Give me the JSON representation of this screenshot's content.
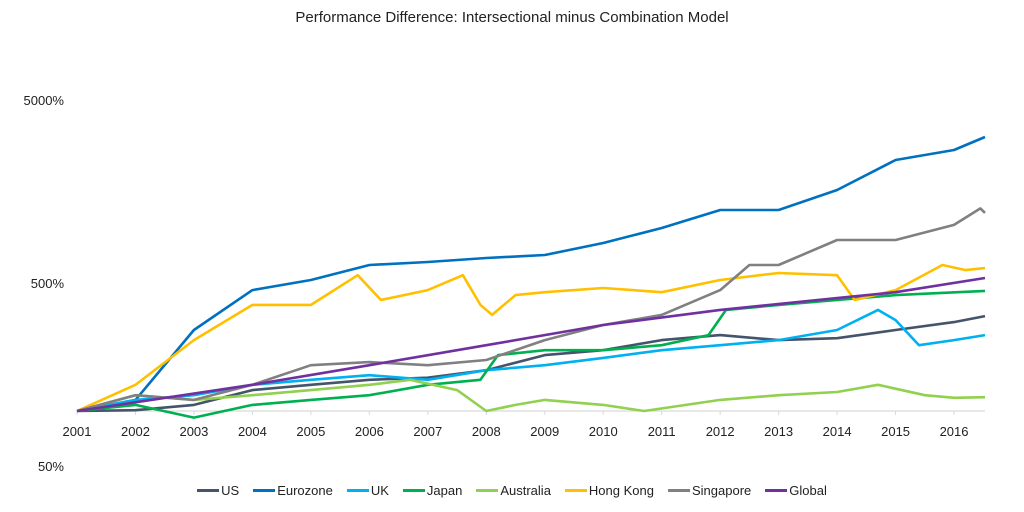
{
  "chart_data": {
    "type": "line",
    "title": "Performance Difference: Intersectional minus Combination Model",
    "xlabel": "",
    "ylabel": "",
    "y_scale": "log",
    "ylim": [
      50,
      5000
    ],
    "y_ticks": [
      50,
      500,
      5000
    ],
    "y_tick_labels": [
      "50%",
      "500%",
      "5000%"
    ],
    "x_ticks": [
      2001,
      2002,
      2003,
      2004,
      2005,
      2006,
      2007,
      2008,
      2009,
      2010,
      2011,
      2012,
      2013,
      2014,
      2015,
      2016
    ],
    "x_tick_labels": [
      "2001",
      "2002",
      "2003",
      "2004",
      "2005",
      "2006",
      "2007",
      "2008",
      "2009",
      "2010",
      "2011",
      "2012",
      "2013",
      "2014",
      "2015",
      "2016"
    ],
    "x_axis_crosses_at": 100,
    "grid": false,
    "legend": "bottom",
    "series": [
      {
        "name": "US",
        "color": "#44546A",
        "points": [
          [
            2001,
            100
          ],
          [
            2002,
            101
          ],
          [
            2003,
            108
          ],
          [
            2004,
            130
          ],
          [
            2005,
            139
          ],
          [
            2006,
            148
          ],
          [
            2007,
            152
          ],
          [
            2008,
            167
          ],
          [
            2009,
            202
          ],
          [
            2010,
            215
          ],
          [
            2011,
            244
          ],
          [
            2012,
            260
          ],
          [
            2013,
            244
          ],
          [
            2014,
            250
          ],
          [
            2015,
            277
          ],
          [
            2016,
            306
          ],
          [
            2016.53,
            330
          ]
        ]
      },
      {
        "name": "Eurozone",
        "color": "#0070C0",
        "points": [
          [
            2001,
            100
          ],
          [
            2002,
            115
          ],
          [
            2003,
            277
          ],
          [
            2004,
            458
          ],
          [
            2005,
            520
          ],
          [
            2006,
            628
          ],
          [
            2007,
            652
          ],
          [
            2008,
            686
          ],
          [
            2009,
            712
          ],
          [
            2010,
            828
          ],
          [
            2011,
            1000
          ],
          [
            2012,
            1254
          ],
          [
            2013,
            1254
          ],
          [
            2014,
            1613
          ],
          [
            2015,
            2353
          ],
          [
            2016,
            2668
          ],
          [
            2016.53,
            3142
          ]
        ]
      },
      {
        "name": "UK",
        "color": "#00B0F0",
        "points": [
          [
            2001,
            100
          ],
          [
            2002,
            115
          ],
          [
            2003,
            122
          ],
          [
            2004,
            139
          ],
          [
            2005,
            148
          ],
          [
            2006,
            157
          ],
          [
            2007,
            148
          ],
          [
            2008,
            167
          ],
          [
            2009,
            178
          ],
          [
            2010,
            195
          ],
          [
            2011,
            215
          ],
          [
            2012,
            229
          ],
          [
            2013,
            244
          ],
          [
            2014,
            277
          ],
          [
            2014.7,
            357
          ],
          [
            2015,
            314
          ],
          [
            2015.4,
            229
          ],
          [
            2016,
            244
          ],
          [
            2016.53,
            260
          ]
        ]
      },
      {
        "name": "Japan",
        "color": "#00B050",
        "points": [
          [
            2001,
            100
          ],
          [
            2002,
            108
          ],
          [
            2003,
            92
          ],
          [
            2004,
            108
          ],
          [
            2005,
            115
          ],
          [
            2006,
            122
          ],
          [
            2007,
            139
          ],
          [
            2007.9,
            148
          ],
          [
            2008.2,
            202
          ],
          [
            2009,
            215
          ],
          [
            2010,
            215
          ],
          [
            2011,
            229
          ],
          [
            2011.8,
            260
          ],
          [
            2012.1,
            357
          ],
          [
            2013,
            380
          ],
          [
            2014,
            404
          ],
          [
            2015,
            430
          ],
          [
            2016.53,
            453
          ]
        ]
      },
      {
        "name": "Australia",
        "color": "#92D050",
        "points": [
          [
            2001,
            100
          ],
          [
            2002,
            122
          ],
          [
            2003,
            115
          ],
          [
            2004,
            122
          ],
          [
            2005,
            130
          ],
          [
            2006,
            139
          ],
          [
            2006.7,
            148
          ],
          [
            2007.5,
            130
          ],
          [
            2008,
            100
          ],
          [
            2008.5,
            108
          ],
          [
            2009,
            115
          ],
          [
            2010,
            108
          ],
          [
            2010.7,
            100
          ],
          [
            2012,
            115
          ],
          [
            2013,
            122
          ],
          [
            2014,
            127
          ],
          [
            2014.7,
            139
          ],
          [
            2015.5,
            122
          ],
          [
            2016,
            118
          ],
          [
            2016.53,
            119
          ]
        ]
      },
      {
        "name": "Hong Kong",
        "color": "#FFC000",
        "points": [
          [
            2001,
            100
          ],
          [
            2002,
            139
          ],
          [
            2003,
            244
          ],
          [
            2004,
            380
          ],
          [
            2005,
            380
          ],
          [
            2005.8,
            552
          ],
          [
            2006.2,
            404
          ],
          [
            2007,
            458
          ],
          [
            2007.6,
            552
          ],
          [
            2007.9,
            380
          ],
          [
            2008.1,
            335
          ],
          [
            2008.5,
            430
          ],
          [
            2009,
            446
          ],
          [
            2010,
            470
          ],
          [
            2011,
            446
          ],
          [
            2012,
            520
          ],
          [
            2013,
            568
          ],
          [
            2014,
            552
          ],
          [
            2014.3,
            404
          ],
          [
            2015,
            458
          ],
          [
            2015.8,
            628
          ],
          [
            2016.2,
            589
          ],
          [
            2016.53,
            604
          ]
        ]
      },
      {
        "name": "Singapore",
        "color": "#808080",
        "points": [
          [
            2001,
            100
          ],
          [
            2002,
            122
          ],
          [
            2003,
            115
          ],
          [
            2004,
            139
          ],
          [
            2005,
            178
          ],
          [
            2006,
            185
          ],
          [
            2007,
            178
          ],
          [
            2008,
            190
          ],
          [
            2009,
            244
          ],
          [
            2010,
            295
          ],
          [
            2011,
            335
          ],
          [
            2012,
            458
          ],
          [
            2012.5,
            628
          ],
          [
            2013,
            628
          ],
          [
            2014,
            860
          ],
          [
            2015,
            860
          ],
          [
            2016,
            1040
          ],
          [
            2016.45,
            1280
          ],
          [
            2016.53,
            1210
          ]
        ]
      },
      {
        "name": "Global",
        "color": "#7030A0",
        "points": [
          [
            2001,
            100
          ],
          [
            2004,
            139
          ],
          [
            2006,
            178
          ],
          [
            2008,
            229
          ],
          [
            2010,
            295
          ],
          [
            2012,
            357
          ],
          [
            2014,
            414
          ],
          [
            2015,
            446
          ],
          [
            2016.53,
            533
          ]
        ]
      }
    ]
  }
}
